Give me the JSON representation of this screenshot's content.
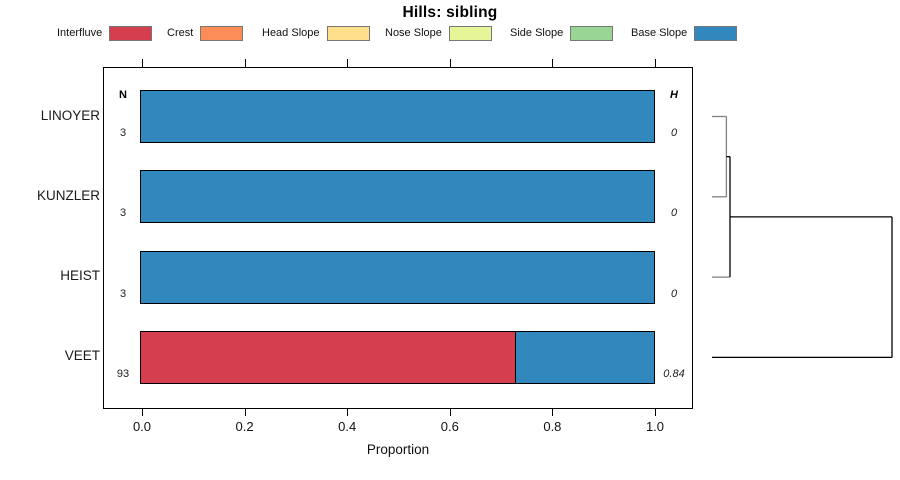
{
  "title": "Hills: sibling",
  "legend": {
    "items": [
      {
        "label": "Interfluve",
        "color": "#D53E4F"
      },
      {
        "label": "Crest",
        "color": "#FC8D59"
      },
      {
        "label": "Head Slope",
        "color": "#FEE08B"
      },
      {
        "label": "Nose Slope",
        "color": "#E6F598"
      },
      {
        "label": "Side Slope",
        "color": "#99D594"
      },
      {
        "label": "Base Slope",
        "color": "#3288BD"
      }
    ]
  },
  "table_headers": {
    "n": "N",
    "h": "H"
  },
  "chart_data": {
    "type": "bar",
    "orientation": "horizontal",
    "stacked": true,
    "title": "Hills: sibling",
    "xlabel": "Proportion",
    "xlim": [
      0,
      1
    ],
    "xticks": [
      "0.0",
      "0.2",
      "0.4",
      "0.6",
      "0.8",
      "1.0"
    ],
    "legend_position": "top",
    "categories": [
      "LINOYER",
      "KUNZLER",
      "HEIST",
      "VEET"
    ],
    "rows": [
      {
        "label": "LINOYER",
        "n": "3",
        "h": "0",
        "segments": [
          {
            "name": "Base Slope",
            "value": 1.0
          }
        ]
      },
      {
        "label": "KUNZLER",
        "n": "3",
        "h": "0",
        "segments": [
          {
            "name": "Base Slope",
            "value": 1.0
          }
        ]
      },
      {
        "label": "HEIST",
        "n": "3",
        "h": "0",
        "segments": [
          {
            "name": "Base Slope",
            "value": 1.0
          }
        ]
      },
      {
        "label": "VEET",
        "n": "93",
        "h": "0.84",
        "segments": [
          {
            "name": "Interfluve",
            "value": 0.73
          },
          {
            "name": "Base Slope",
            "value": 0.27
          }
        ]
      }
    ],
    "dendrogram": {
      "leaves": [
        "LINOYER",
        "KUNZLER",
        "HEIST",
        "VEET"
      ],
      "merges": [
        {
          "children": [
            "LINOYER",
            "KUNZLER"
          ],
          "height": 0.08
        },
        {
          "children": [
            "merge0",
            "HEIST"
          ],
          "height": 0.1
        },
        {
          "children": [
            "merge1",
            "VEET"
          ],
          "height": 1.0
        }
      ]
    }
  }
}
